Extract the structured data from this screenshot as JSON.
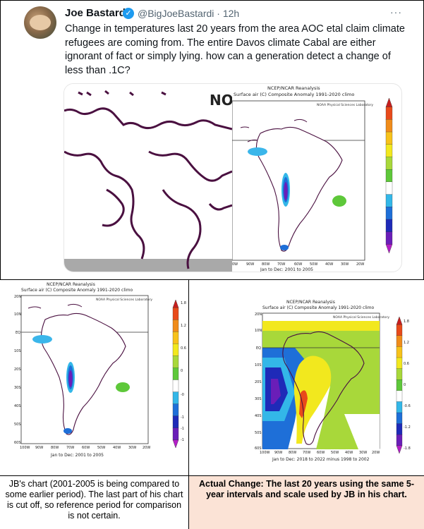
{
  "tweet": {
    "author": "Joe Bastardi",
    "handle": "@BigJoeBastardi",
    "time": "· 12h",
    "text": "Change in temperatures last 20 years from the area AOC etal claim climate refugees are coming from.   The entire Davos climate Cabal are either ignorant of fact or simply lying.  how can a generation detect a change of less than .1C?",
    "more": "···"
  },
  "zoomed_label": "NO",
  "chart_top": {
    "source": "NCEP/NCAR Reanalysis",
    "title": "Surface air (C) Composite Anomaly 1991-2020 climo",
    "lab": "NOAA Physical Sciences Laboratory",
    "period": "Jan to Dec: 2001 to 2005",
    "xticks": [
      "0W",
      "90W",
      "80W",
      "70W",
      "60W",
      "50W",
      "40W",
      "30W",
      "20W"
    ]
  },
  "chart_left": {
    "source": "NCEP/NCAR Reanalysis",
    "title": "Surface air (C) Composite Anomaly 1991-2020 climo",
    "lab": "NOAA Physical Sciences Laboratory",
    "period": "Jan to Dec: 2001 to 2005",
    "yticks": [
      "20N",
      "10N",
      "EQ",
      "10S",
      "20S",
      "30S",
      "40S",
      "50S",
      "60S"
    ],
    "xticks": [
      "100W",
      "90W",
      "80W",
      "70W",
      "60W",
      "50W",
      "40W",
      "30W",
      "20W"
    ],
    "scale": [
      "1.8",
      "1.2",
      "0.6",
      "0",
      "-0",
      "-1",
      "-1",
      "-1"
    ]
  },
  "chart_right": {
    "source": "NCEP/NCAR Reanalysis",
    "title": "Surface air (C) Composite Anomaly 1991-2020 climo",
    "lab": "NOAA Physical Sciences Laboratory",
    "period": "Jan to Dec: 2018 to 2022 minus 1998 to 2002",
    "yticks": [
      "20N",
      "10N",
      "EQ",
      "10S",
      "20S",
      "30S",
      "40S",
      "50S",
      "60S"
    ],
    "xticks": [
      "100W",
      "90W",
      "80W",
      "70W",
      "60W",
      "50W",
      "40W",
      "30W",
      "20W"
    ],
    "scale": [
      "1.8",
      "1.2",
      "0.6",
      "0",
      "-0.6",
      "-1.2",
      "-1.8"
    ]
  },
  "captions": {
    "left": "JB's chart (2001-2005 is being compared to some earlier period). The last part of his chart is cut off, so reference period for comparison is not certain.",
    "right": "Actual Change: The last 20 years using the same 5-year intervals and scale used by JB in his chart."
  },
  "colors": {
    "scale_stops": [
      "#c81e1e",
      "#e84a1a",
      "#f08c1a",
      "#f7c21a",
      "#f2e81e",
      "#a8d83a",
      "#5ec83a",
      "#ffffff",
      "#33b7e8",
      "#1e6fd8",
      "#1e2ab8",
      "#6a1eb8",
      "#b41ec8"
    ],
    "coast": "#4a1040"
  }
}
